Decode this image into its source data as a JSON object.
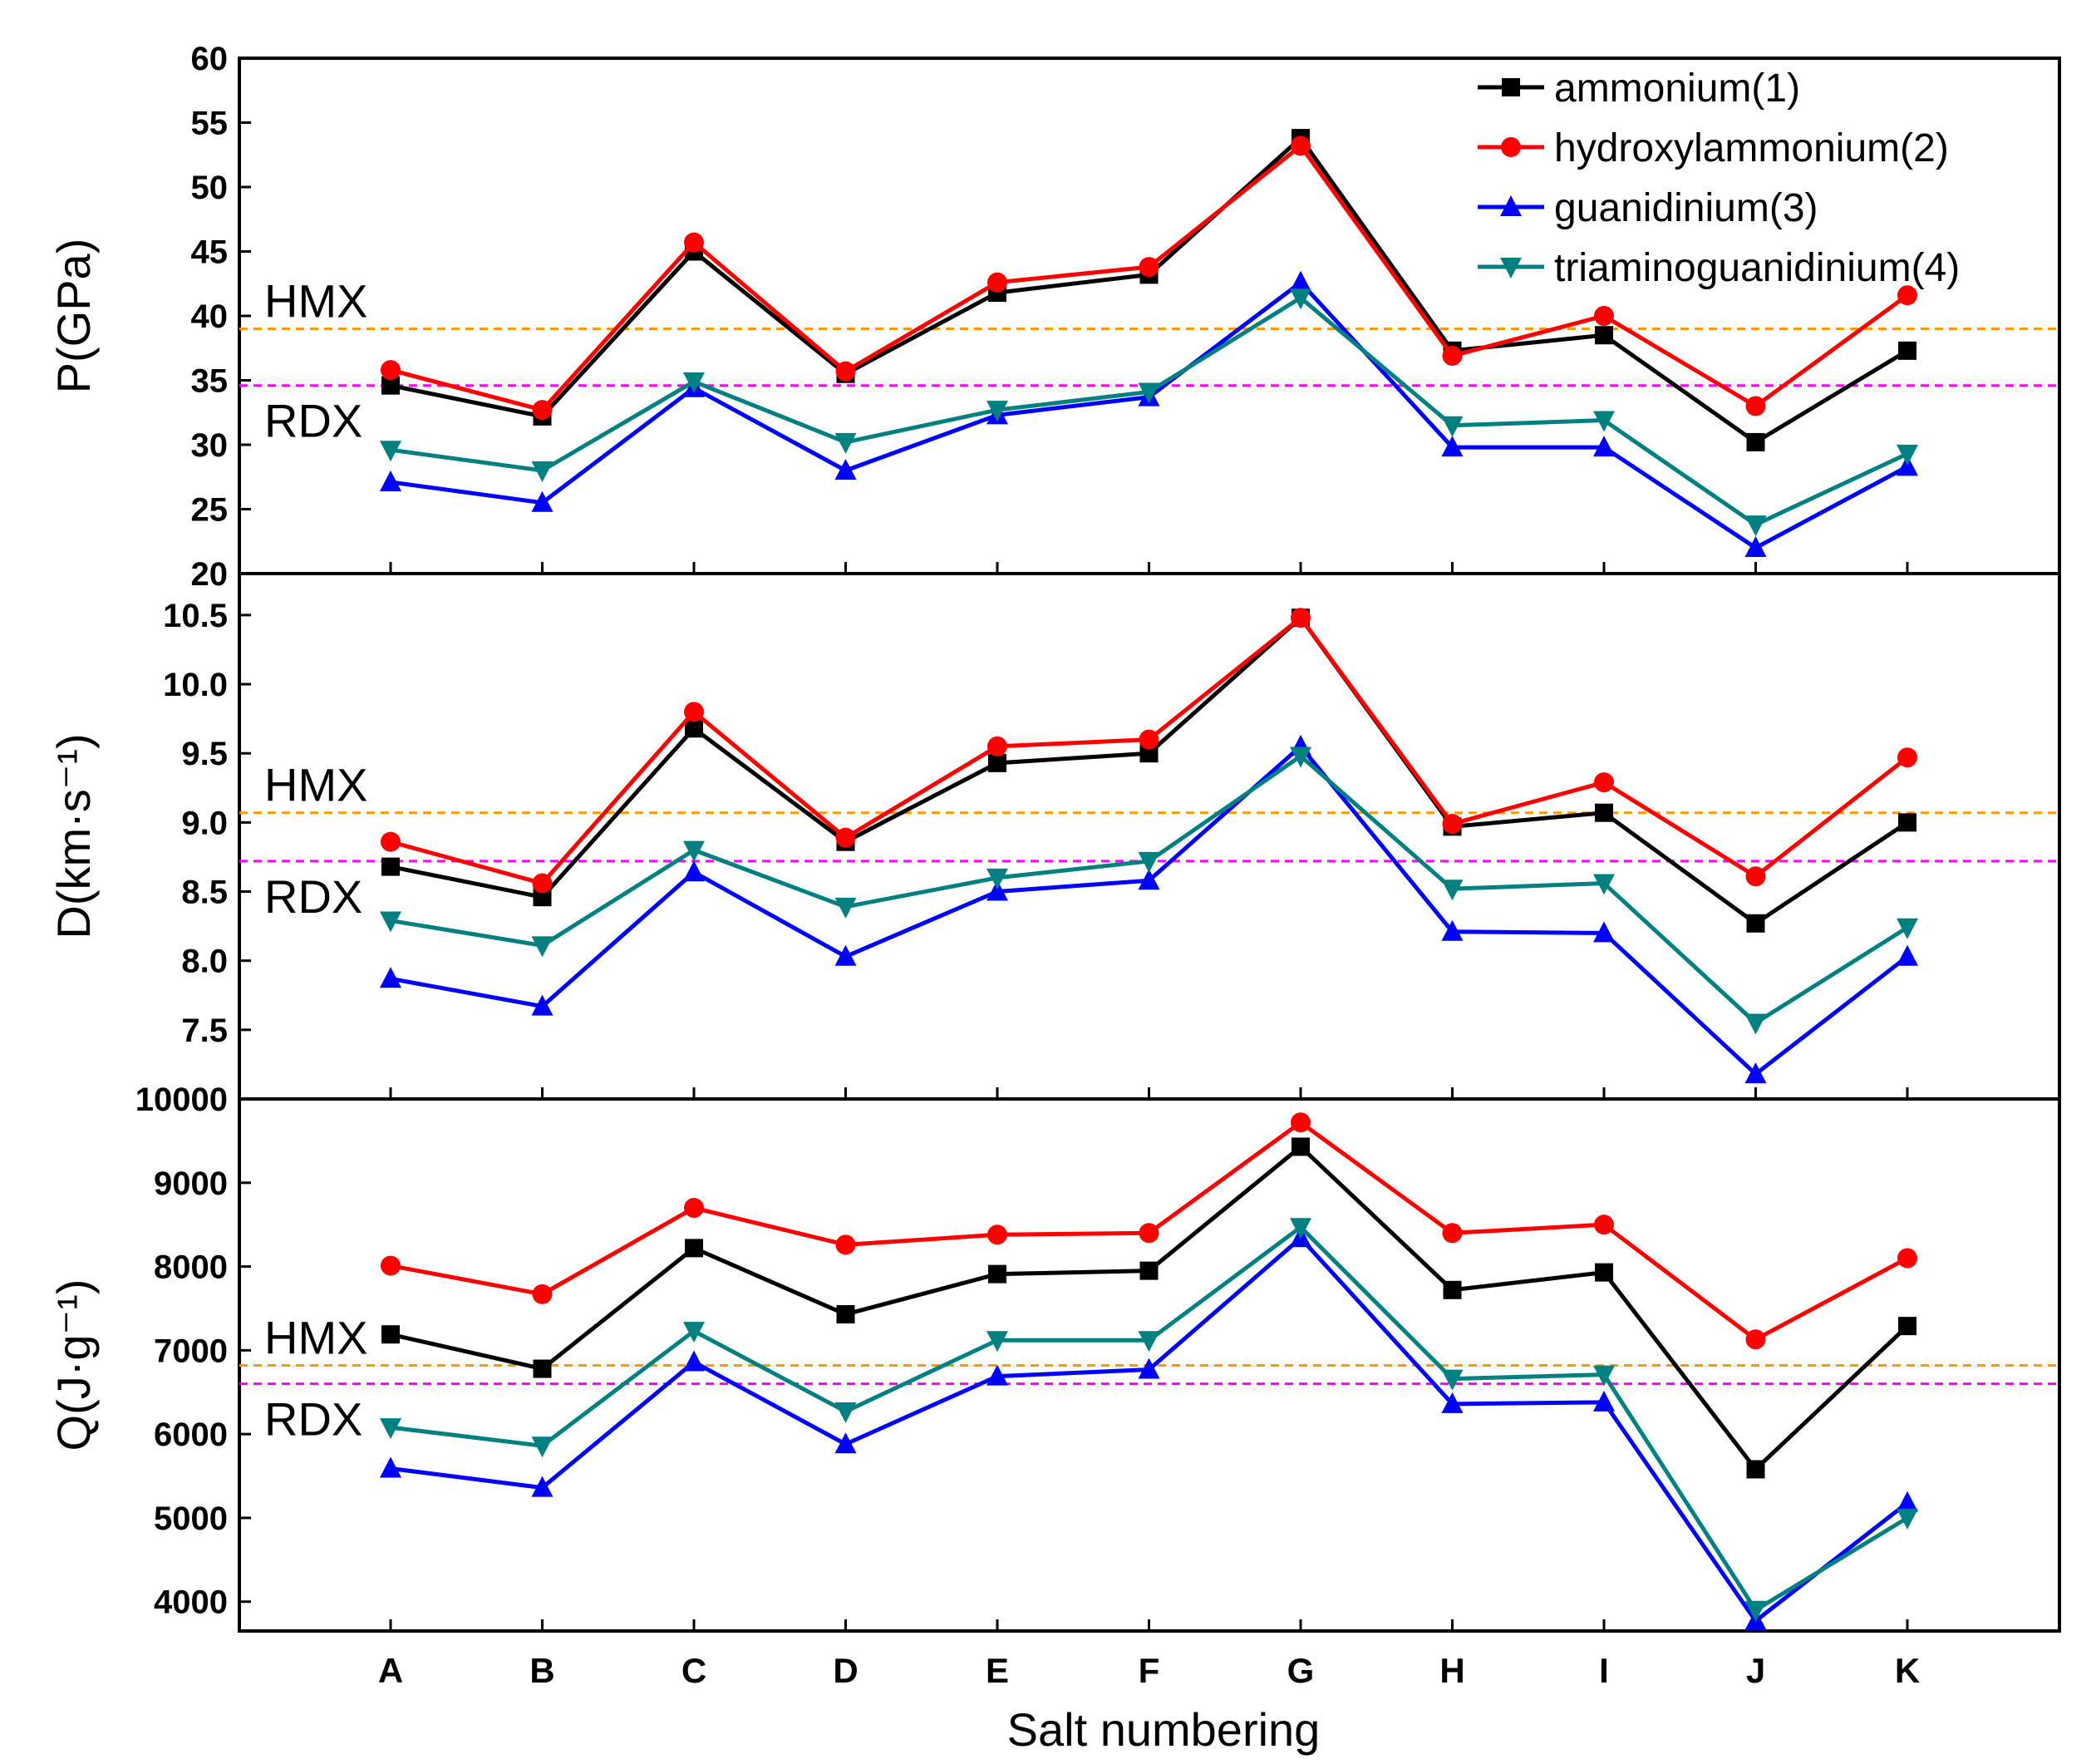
{
  "chart_data": {
    "type": "line",
    "xlabel": "Salt numbering",
    "categories": [
      "A",
      "B",
      "C",
      "D",
      "E",
      "F",
      "G",
      "H",
      "I",
      "J",
      "K"
    ],
    "legend": {
      "placement": "top-right",
      "entries": [
        {
          "name": "ammonium(1)",
          "color": "#000000",
          "marker": "square"
        },
        {
          "name": "hydroxylammonium(2)",
          "color": "#ff0000",
          "marker": "circle"
        },
        {
          "name": "guanidinium(3)",
          "color": "#0000ff",
          "marker": "triangle-up"
        },
        {
          "name": "triaminoguanidinium(4)",
          "color": "#008080",
          "marker": "triangle-down"
        }
      ]
    },
    "panels": [
      {
        "id": "P",
        "ylabel": "P(GPa)",
        "ylim": [
          20,
          60
        ],
        "yticks": [
          20,
          25,
          30,
          35,
          40,
          45,
          50,
          55,
          60
        ],
        "ytick_labels": [
          "20",
          "25",
          "30",
          "35",
          "40",
          "45",
          "50",
          "55",
          "60"
        ],
        "references": [
          {
            "label": "HMX",
            "value": 39.0,
            "color": "#ff9900"
          },
          {
            "label": "RDX",
            "value": 34.6,
            "color": "#ff00ff"
          }
        ],
        "series": [
          {
            "name": "ammonium(1)",
            "values": [
              34.6,
              32.2,
              45.0,
              35.5,
              41.8,
              43.2,
              53.8,
              37.3,
              38.5,
              30.2,
              37.3
            ]
          },
          {
            "name": "hydroxylammonium(2)",
            "values": [
              35.8,
              32.7,
              45.7,
              35.7,
              42.6,
              43.8,
              53.2,
              36.9,
              40.0,
              33.0,
              41.6
            ]
          },
          {
            "name": "guanidinium(3)",
            "values": [
              27.1,
              25.5,
              34.4,
              28.0,
              32.3,
              33.7,
              42.6,
              29.8,
              29.8,
              22.0,
              28.3
            ]
          },
          {
            "name": "triaminoguanidinium(4)",
            "values": [
              29.6,
              28.0,
              34.9,
              30.2,
              32.7,
              34.1,
              41.4,
              31.5,
              31.9,
              23.8,
              29.3
            ]
          }
        ]
      },
      {
        "id": "D",
        "ylabel": "D(km·s⁻¹)",
        "ylim": [
          7.0,
          10.8
        ],
        "yticks": [
          7.5,
          8.0,
          8.5,
          9.0,
          9.5,
          10.0,
          10.5
        ],
        "ytick_labels": [
          "7.5",
          "8.0",
          "8.5",
          "9.0",
          "9.5",
          "10.0",
          "10.5"
        ],
        "references": [
          {
            "label": "HMX",
            "value": 9.07,
            "color": "#ff9900"
          },
          {
            "label": "RDX",
            "value": 8.72,
            "color": "#ff00ff"
          }
        ],
        "series": [
          {
            "name": "ammonium(1)",
            "values": [
              8.68,
              8.46,
              9.68,
              8.86,
              9.43,
              9.5,
              10.48,
              8.97,
              9.07,
              8.27,
              9.0
            ]
          },
          {
            "name": "hydroxylammonium(2)",
            "values": [
              8.86,
              8.56,
              9.8,
              8.89,
              9.55,
              9.6,
              10.48,
              8.99,
              9.29,
              8.61,
              9.47
            ]
          },
          {
            "name": "guanidinium(3)",
            "values": [
              7.87,
              7.67,
              8.64,
              8.03,
              8.5,
              8.58,
              9.55,
              8.21,
              8.2,
              7.18,
              8.03
            ]
          },
          {
            "name": "triaminoguanidinium(4)",
            "values": [
              8.29,
              8.11,
              8.8,
              8.39,
              8.6,
              8.72,
              9.48,
              8.52,
              8.56,
              7.55,
              8.24
            ]
          }
        ]
      },
      {
        "id": "Q",
        "ylabel": "Q(J·g⁻¹)",
        "ylim": [
          3650,
          10000
        ],
        "yticks": [
          4000,
          5000,
          6000,
          7000,
          8000,
          9000,
          10000
        ],
        "ytick_labels": [
          "4000",
          "5000",
          "6000",
          "7000",
          "8000",
          "9000",
          "10000"
        ],
        "references": [
          {
            "label": "HMX",
            "value": 6820,
            "color": "#ff9900"
          },
          {
            "label": "RDX",
            "value": 6600,
            "color": "#ff00ff"
          }
        ],
        "series": [
          {
            "name": "ammonium(1)",
            "values": [
              7190,
              6780,
              8220,
              7430,
              7910,
              7950,
              9430,
              7720,
              7930,
              5580,
              7290
            ]
          },
          {
            "name": "hydroxylammonium(2)",
            "values": [
              8010,
              7670,
              8700,
              8260,
              8380,
              8400,
              9720,
              8400,
              8500,
              7130,
              8100
            ]
          },
          {
            "name": "guanidinium(3)",
            "values": [
              5590,
              5360,
              6860,
              5880,
              6690,
              6770,
              8340,
              6360,
              6380,
              3770,
              5180
            ]
          },
          {
            "name": "triaminoguanidinium(4)",
            "values": [
              6080,
              5860,
              7230,
              6270,
              7120,
              7120,
              8470,
              6660,
              6710,
              3900,
              5000
            ]
          }
        ]
      }
    ]
  }
}
